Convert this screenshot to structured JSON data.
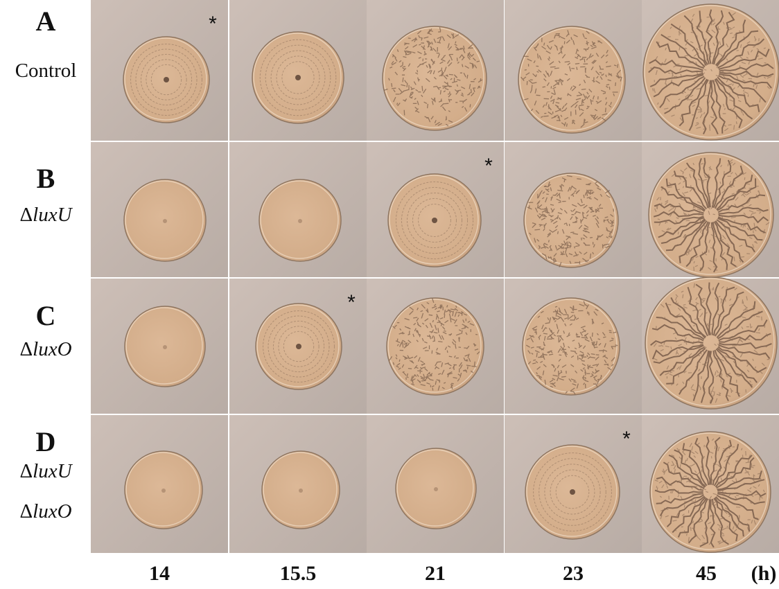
{
  "marker": "*",
  "rows": [
    {
      "letter": "A",
      "lines": [
        [
          {
            "text": "Control",
            "italic": false
          }
        ]
      ],
      "marked_column": 0
    },
    {
      "letter": "B",
      "lines": [
        [
          {
            "text": "Δ",
            "italic": false
          },
          {
            "text": "luxU",
            "italic": true
          }
        ]
      ],
      "marked_column": 2
    },
    {
      "letter": "C",
      "lines": [
        [
          {
            "text": "Δ",
            "italic": false
          },
          {
            "text": "luxO",
            "italic": true
          }
        ]
      ],
      "marked_column": 1
    },
    {
      "letter": "D",
      "lines": [
        [
          {
            "text": "Δ",
            "italic": false
          },
          {
            "text": "luxU",
            "italic": true
          }
        ],
        [
          {
            "text": "Δ",
            "italic": false
          },
          {
            "text": "luxO",
            "italic": true
          }
        ]
      ],
      "marked_column": 3
    }
  ],
  "columns": [
    "14",
    "15.5",
    "21",
    "23",
    "45"
  ],
  "unit": "(h)"
}
